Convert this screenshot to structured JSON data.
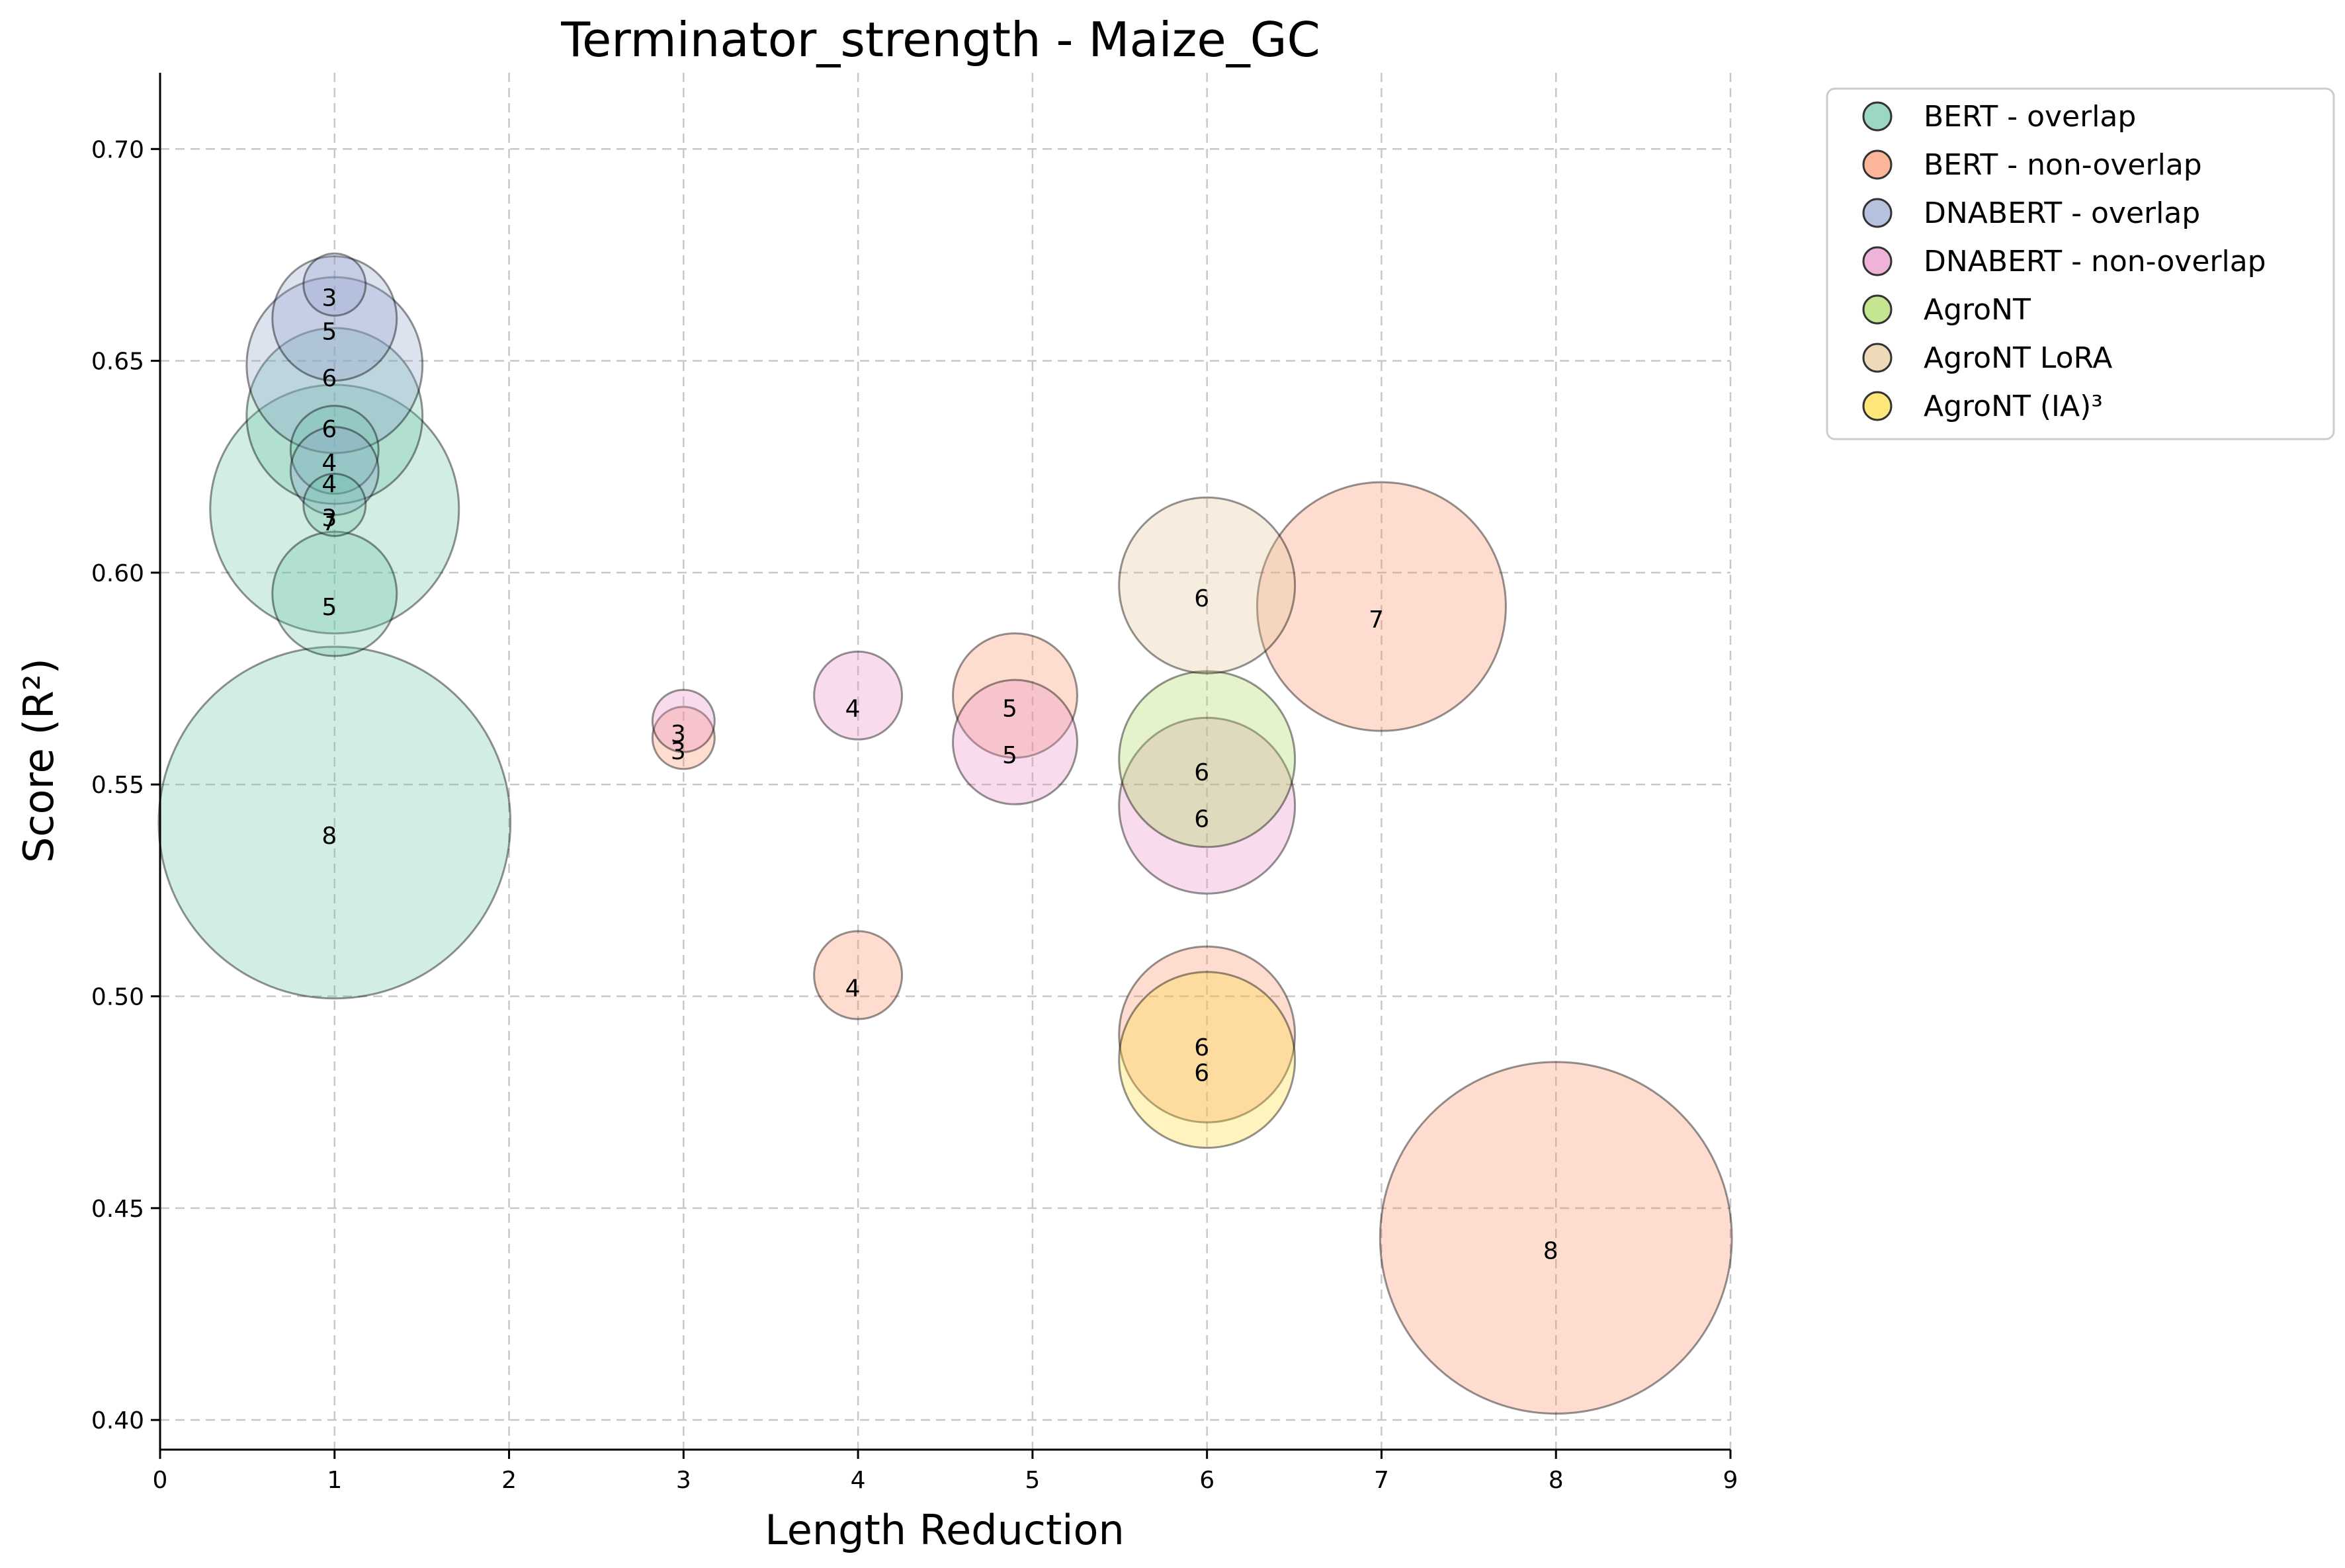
{
  "chart_data": {
    "type": "scatter",
    "title": "Terminator_strength - Maize_GC",
    "xlabel": "Length Reduction",
    "ylabel": "Score (R²)",
    "xlim": [
      0,
      9
    ],
    "ylim": [
      0.393,
      0.718
    ],
    "xticks": [
      "0",
      "1",
      "2",
      "3",
      "4",
      "5",
      "6",
      "7",
      "8",
      "9"
    ],
    "yticks": [
      "0.40",
      "0.45",
      "0.50",
      "0.55",
      "0.60",
      "0.65",
      "0.70"
    ],
    "grid": true,
    "legend_position": "outside-top-right",
    "series": [
      {
        "name": "BERT - overlap",
        "color": "#66c2a5",
        "points": [
          {
            "x": 1,
            "y": 0.541,
            "label": "8"
          },
          {
            "x": 1,
            "y": 0.615,
            "label": "7"
          },
          {
            "x": 1,
            "y": 0.637,
            "label": "6"
          },
          {
            "x": 1,
            "y": 0.595,
            "label": "5"
          },
          {
            "x": 1,
            "y": 0.629,
            "label": "4"
          },
          {
            "x": 1,
            "y": 0.616,
            "label": "3"
          }
        ]
      },
      {
        "name": "BERT - non-overlap",
        "color": "#fc8d62",
        "points": [
          {
            "x": 8,
            "y": 0.443,
            "label": "8"
          },
          {
            "x": 7,
            "y": 0.592,
            "label": "7"
          },
          {
            "x": 6,
            "y": 0.491,
            "label": "6"
          },
          {
            "x": 4.9,
            "y": 0.571,
            "label": "5"
          },
          {
            "x": 4,
            "y": 0.505,
            "label": "4"
          },
          {
            "x": 3,
            "y": 0.561,
            "label": "3"
          }
        ]
      },
      {
        "name": "DNABERT - overlap",
        "color": "#8da0cb",
        "points": [
          {
            "x": 1,
            "y": 0.668,
            "label": "3"
          },
          {
            "x": 1,
            "y": 0.66,
            "label": "5"
          },
          {
            "x": 1,
            "y": 0.649,
            "label": "6"
          },
          {
            "x": 1,
            "y": 0.624,
            "label": "4"
          }
        ]
      },
      {
        "name": "DNABERT - non-overlap",
        "color": "#e78ac3",
        "points": [
          {
            "x": 3,
            "y": 0.565,
            "label": "3"
          },
          {
            "x": 4,
            "y": 0.571,
            "label": "4"
          },
          {
            "x": 4.9,
            "y": 0.56,
            "label": "5"
          },
          {
            "x": 6,
            "y": 0.545,
            "label": "6"
          }
        ]
      },
      {
        "name": "AgroNT",
        "color": "#a6d854",
        "points": [
          {
            "x": 6,
            "y": 0.556,
            "label": "6"
          }
        ]
      },
      {
        "name": "AgroNT LoRA",
        "color": "#e5c494",
        "points": [
          {
            "x": 6,
            "y": 0.597,
            "label": "6"
          }
        ]
      },
      {
        "name": "AgroNT (IA)³",
        "color": "#ffd92f",
        "points": [
          {
            "x": 6,
            "y": 0.485,
            "label": "6"
          }
        ]
      }
    ]
  }
}
